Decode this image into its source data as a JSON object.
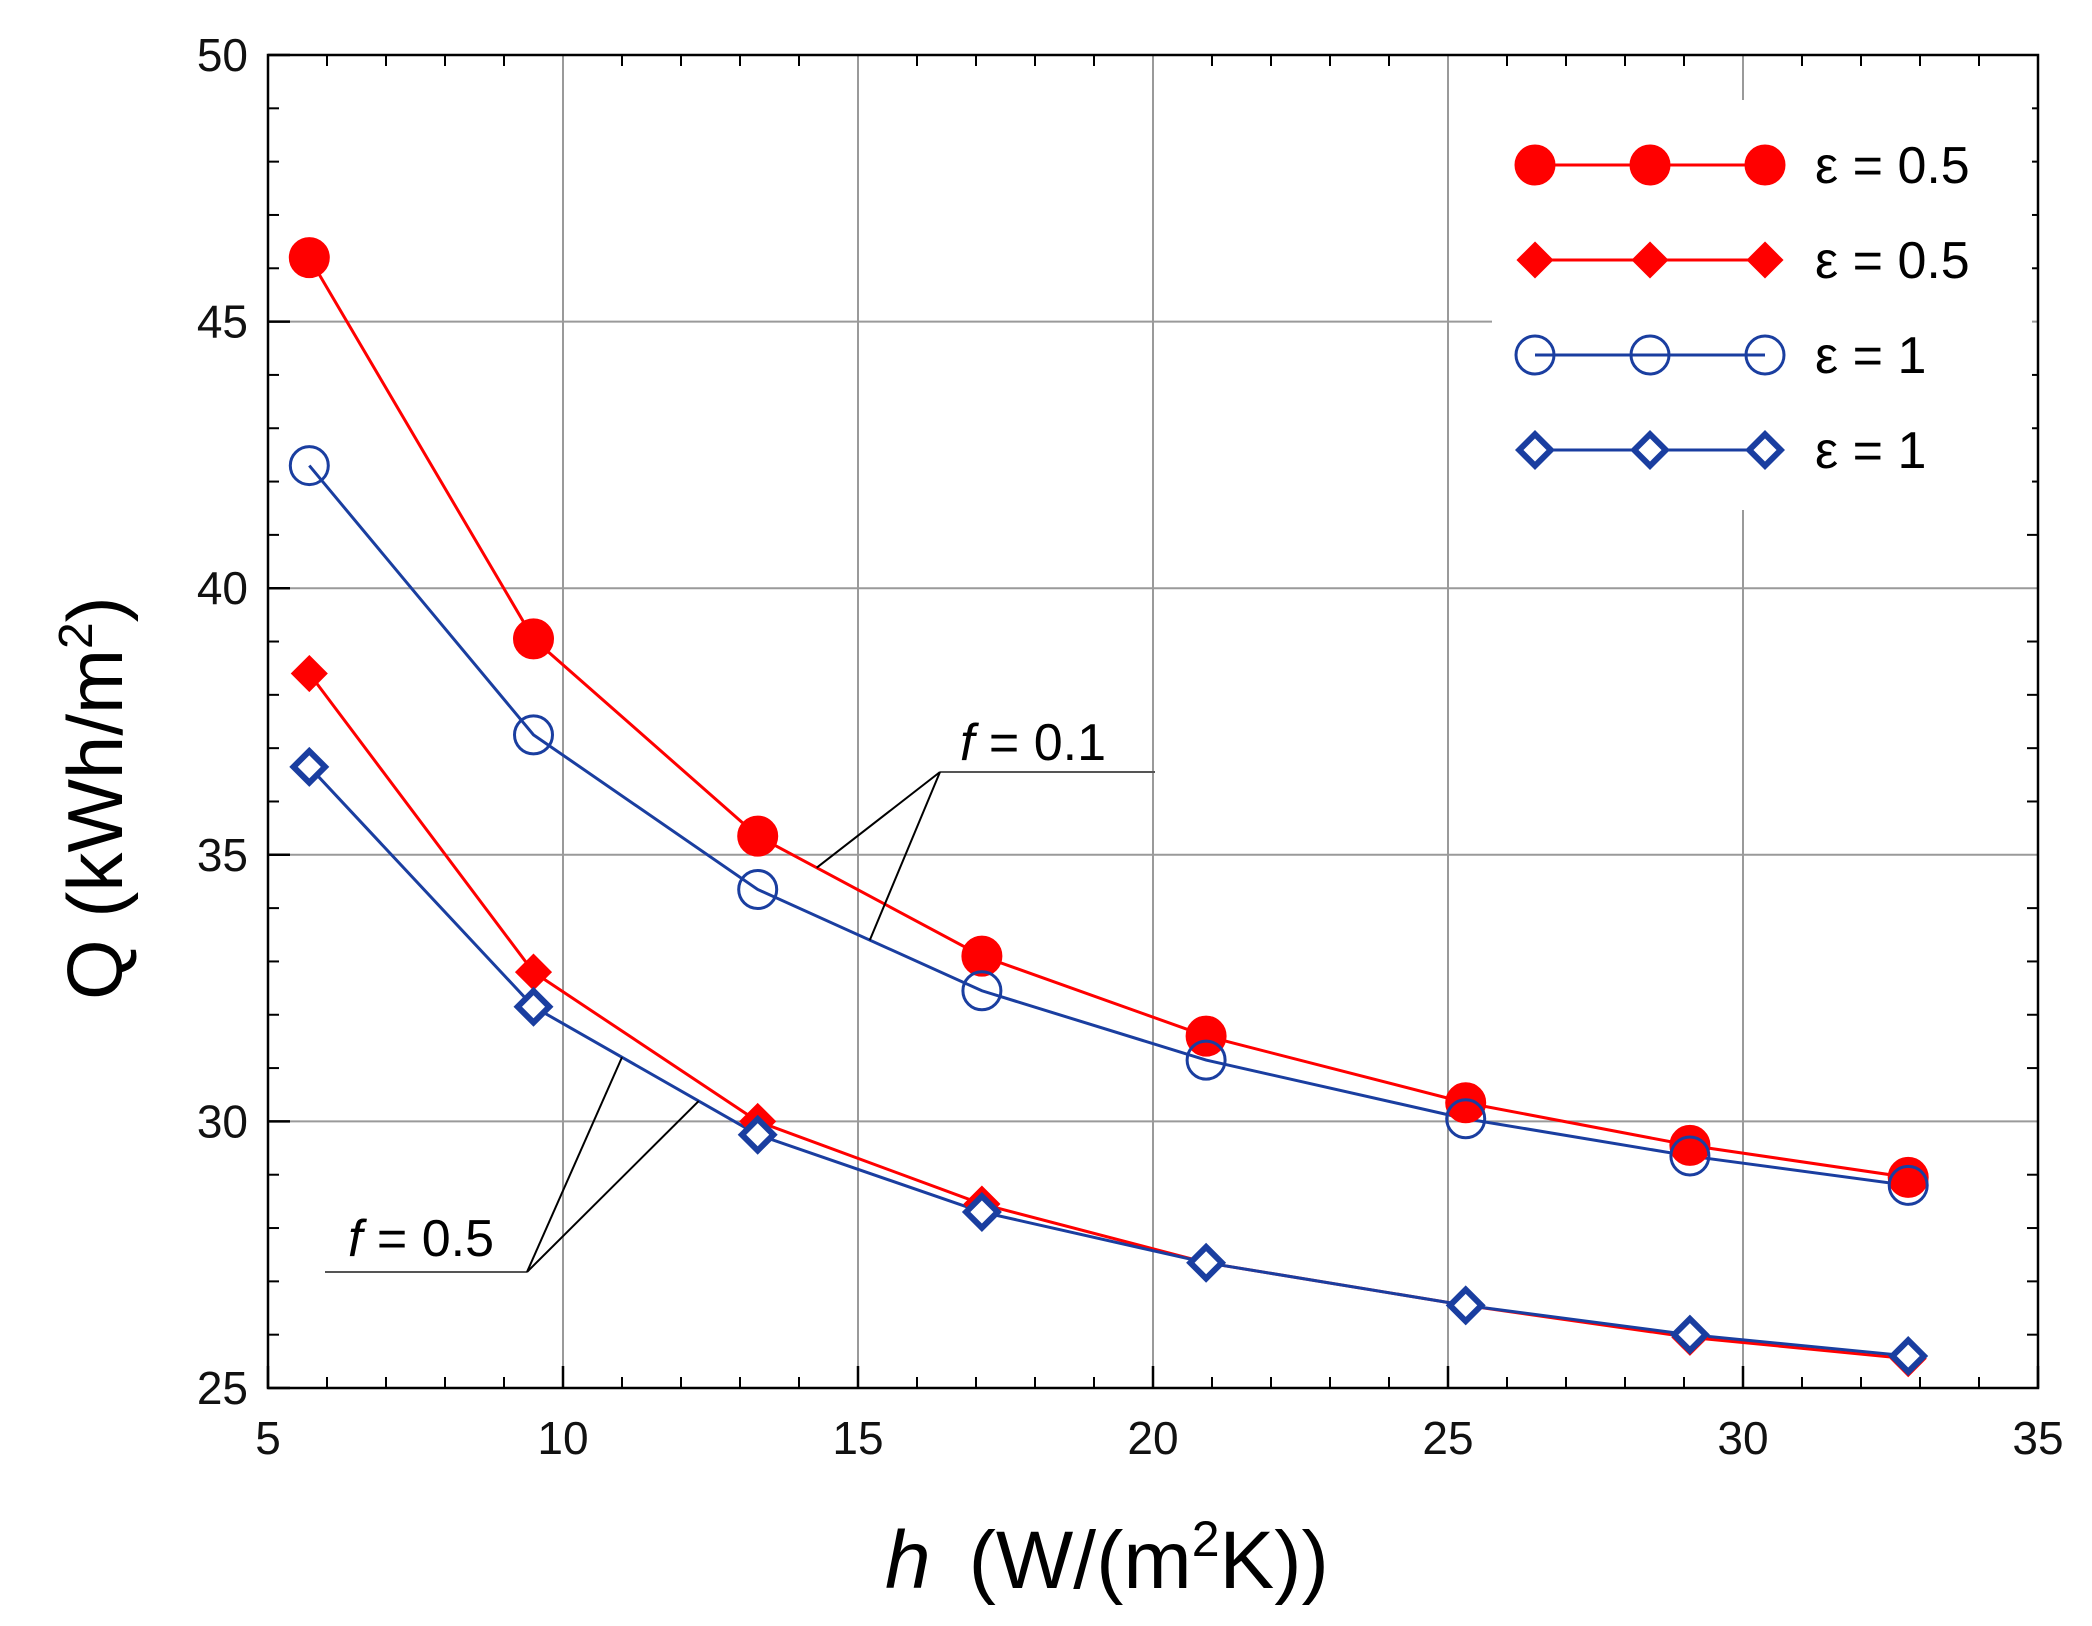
{
  "chart_data": {
    "type": "line",
    "x_axis": {
      "title_var": "h",
      "title_pre": "(W/(m",
      "title_sup": "2",
      "title_post": "K))",
      "range": [
        5,
        35
      ],
      "ticks": [
        5,
        10,
        15,
        20,
        25,
        30,
        35
      ],
      "minor_step": 1
    },
    "y_axis": {
      "title_main": "Q (kWh/m",
      "title_sup": "2",
      "title_post": ")",
      "range": [
        25,
        50
      ],
      "ticks": [
        25,
        30,
        35,
        40,
        45,
        50
      ],
      "minor_step": 1
    },
    "grid": true,
    "legend_position": "top-right",
    "series": [
      {
        "name": "ε = 0.5",
        "group": "f = 0.1",
        "color": "#ff0000",
        "marker": "filled-circle",
        "x": [
          5.7,
          9.5,
          13.3,
          17.1,
          20.9,
          25.3,
          29.1,
          32.8
        ],
        "y": [
          46.2,
          39.05,
          35.35,
          33.1,
          31.6,
          30.35,
          29.55,
          28.95
        ]
      },
      {
        "name": "ε = 0.5",
        "group": "f = 0.5",
        "color": "#ff0000",
        "marker": "filled-diamond",
        "x": [
          5.7,
          9.5,
          13.3,
          17.1,
          20.9,
          25.3,
          29.1,
          32.8
        ],
        "y": [
          38.4,
          32.8,
          30.0,
          28.45,
          27.35,
          26.55,
          25.95,
          25.55
        ]
      },
      {
        "name": "ε = 1",
        "group": "f = 0.1",
        "color": "#1a3ea0",
        "marker": "open-circle",
        "x": [
          5.7,
          9.5,
          13.3,
          17.1,
          20.9,
          25.3,
          29.1,
          32.8
        ],
        "y": [
          42.3,
          37.25,
          34.35,
          32.45,
          31.15,
          30.05,
          29.35,
          28.8
        ]
      },
      {
        "name": "ε = 1",
        "group": "f = 0.5",
        "color": "#1a3ea0",
        "marker": "open-diamond",
        "x": [
          5.7,
          9.5,
          13.3,
          17.1,
          20.9,
          25.3,
          29.1,
          32.8
        ],
        "y": [
          36.65,
          32.15,
          29.75,
          28.3,
          27.35,
          26.55,
          26.0,
          25.6
        ]
      }
    ],
    "annotations": [
      {
        "var": "f",
        "text": " = 0.1",
        "points_at_x": [
          14.3,
          15.2
        ],
        "series_group": "f = 0.1"
      },
      {
        "var": "f",
        "text": " = 0.5",
        "points_at_x": [
          11.0,
          12.3
        ],
        "series_group": "f = 0.5"
      }
    ]
  }
}
